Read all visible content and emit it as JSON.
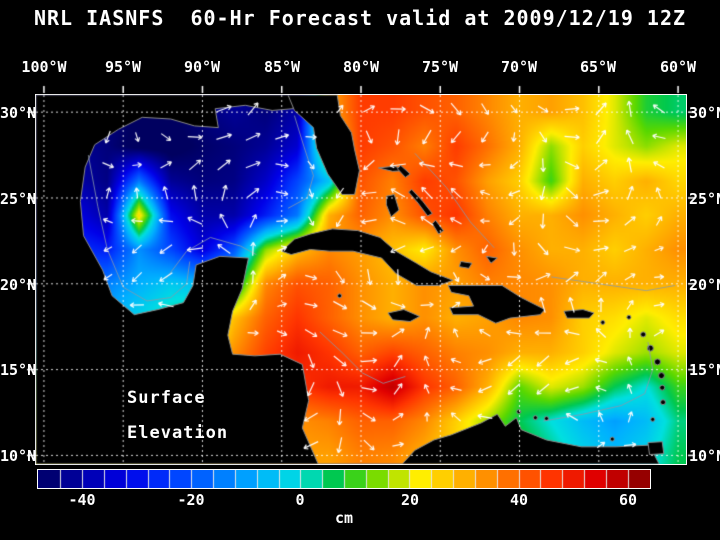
{
  "chart_data": {
    "type": "heatmap",
    "title": "NRL IASNFS  60-Hr Forecast valid at 2009/12/19 12Z",
    "annotation": {
      "line1": "Surface",
      "line2": "Elevation"
    },
    "x_axis": {
      "ticks": [
        "100°W",
        "95°W",
        "90°W",
        "85°W",
        "80°W",
        "75°W",
        "70°W",
        "65°W",
        "60°W"
      ],
      "lon_values": [
        -100,
        -95,
        -90,
        -85,
        -80,
        -75,
        -70,
        -65,
        -60
      ]
    },
    "y_axis": {
      "ticks": [
        "30°N",
        "25°N",
        "20°N",
        "15°N",
        "10°N"
      ],
      "lat_values": [
        30,
        25,
        20,
        15,
        10
      ]
    },
    "colorbar": {
      "units": "cm",
      "ticks": [
        -40,
        -20,
        0,
        20,
        40,
        60
      ],
      "range": [
        -48,
        64
      ],
      "segment_step": 4,
      "stops": [
        [
          -48,
          "#000060"
        ],
        [
          -40,
          "#0000a8"
        ],
        [
          -32,
          "#0000e8"
        ],
        [
          -24,
          "#0038ff"
        ],
        [
          -16,
          "#0070ff"
        ],
        [
          -8,
          "#00b0ff"
        ],
        [
          0,
          "#00e0e0"
        ],
        [
          6,
          "#00c850"
        ],
        [
          12,
          "#58d800"
        ],
        [
          18,
          "#c0e400"
        ],
        [
          22,
          "#ffee00"
        ],
        [
          30,
          "#ffb000"
        ],
        [
          38,
          "#ff7000"
        ],
        [
          46,
          "#ff3400"
        ],
        [
          54,
          "#e00000"
        ],
        [
          60,
          "#b00000"
        ],
        [
          64,
          "#7c0000"
        ]
      ]
    },
    "grid": {
      "lon_start": -100,
      "lon_step": 2,
      "lat_start": 30,
      "lat_step": -2,
      "units": "cm",
      "values": [
        [
          -45,
          -45,
          -45,
          -48,
          -48,
          -45,
          -42,
          -45,
          -40,
          30,
          45,
          45,
          42,
          40,
          35,
          30,
          32,
          28,
          20,
          8,
          5
        ],
        [
          -40,
          -42,
          -45,
          -50,
          -50,
          -47,
          -45,
          -42,
          -35,
          20,
          45,
          42,
          36,
          45,
          38,
          30,
          15,
          26,
          20,
          15,
          20
        ],
        [
          -38,
          -40,
          -44,
          -15,
          -42,
          -45,
          -44,
          -36,
          -22,
          -5,
          42,
          36,
          45,
          42,
          32,
          26,
          10,
          30,
          26,
          30,
          25
        ],
        [
          -30,
          -32,
          -40,
          25,
          -30,
          -40,
          -40,
          -28,
          -15,
          30,
          40,
          34,
          42,
          46,
          36,
          30,
          30,
          34,
          30,
          26,
          30
        ],
        [
          -25,
          -25,
          -28,
          -12,
          -22,
          -34,
          -20,
          15,
          28,
          35,
          32,
          28,
          22,
          34,
          40,
          34,
          30,
          30,
          26,
          30,
          34
        ],
        [
          -20,
          -18,
          -14,
          -8,
          -4,
          -6,
          0,
          35,
          42,
          40,
          34,
          30,
          34,
          32,
          36,
          35,
          34,
          30,
          30,
          30,
          30
        ],
        [
          -10,
          -8,
          -8,
          -2,
          4,
          8,
          28,
          40,
          46,
          40,
          34,
          30,
          34,
          30,
          32,
          35,
          34,
          26,
          24,
          20,
          24
        ],
        [
          0,
          0,
          2,
          6,
          10,
          20,
          34,
          44,
          50,
          46,
          40,
          44,
          40,
          36,
          34,
          30,
          30,
          26,
          20,
          16,
          20
        ],
        [
          10,
          10,
          10,
          14,
          20,
          26,
          32,
          40,
          46,
          50,
          50,
          58,
          46,
          40,
          30,
          12,
          20,
          16,
          6,
          0,
          10
        ],
        [
          15,
          15,
          15,
          18,
          22,
          26,
          30,
          32,
          34,
          36,
          40,
          40,
          35,
          26,
          16,
          6,
          0,
          -6,
          -10,
          -6,
          4
        ],
        [
          20,
          20,
          20,
          20,
          22,
          26,
          28,
          30,
          32,
          32,
          36,
          35,
          30,
          24,
          18,
          10,
          4,
          -2,
          -6,
          -2,
          6
        ]
      ]
    },
    "styles": {
      "vector_color": "#ffffff",
      "grid_line_color": "#ffffff",
      "land_color": "#000000",
      "coast_color": "#8a8a8a",
      "contour_color": "#8899aa",
      "background": "#000000",
      "text_color": "#ffffff"
    }
  },
  "map": {
    "lon_range": [
      -100.5,
      -59.5
    ],
    "lat_range": [
      9.5,
      31
    ],
    "land": [
      [
        [
          -84,
          31
        ],
        [
          -84.3,
          30.2
        ],
        [
          -85.6,
          30.1
        ],
        [
          -87.3,
          30.4
        ],
        [
          -89.2,
          30.2
        ],
        [
          -89,
          29.1
        ],
        [
          -90.5,
          29.2
        ],
        [
          -92,
          29.6
        ],
        [
          -93.8,
          29.7
        ],
        [
          -95.3,
          29
        ],
        [
          -96.8,
          28.1
        ],
        [
          -97.4,
          26.8
        ],
        [
          -97.7,
          24.8
        ],
        [
          -97.5,
          22.8
        ],
        [
          -96.3,
          20.8
        ],
        [
          -95.7,
          19.3
        ],
        [
          -94.3,
          18.2
        ],
        [
          -92.8,
          18.5
        ],
        [
          -91.2,
          18.9
        ],
        [
          -90.6,
          19.9
        ],
        [
          -90.4,
          21.1
        ],
        [
          -88.9,
          21.6
        ],
        [
          -87.1,
          21.5
        ],
        [
          -87.5,
          19.7
        ],
        [
          -88.1,
          18.4
        ],
        [
          -88.4,
          17
        ],
        [
          -88.1,
          15.9
        ],
        [
          -86.7,
          15.8
        ],
        [
          -85.1,
          15.9
        ],
        [
          -83.7,
          15.3
        ],
        [
          -83.3,
          13.2
        ],
        [
          -83.7,
          11.6
        ],
        [
          -82.7,
          9.5
        ],
        [
          -77.4,
          9.5
        ],
        [
          -76.6,
          10.3
        ],
        [
          -75.4,
          10.9
        ],
        [
          -74.3,
          11.2
        ],
        [
          -72.4,
          11.9
        ],
        [
          -71.4,
          12.4
        ],
        [
          -70.9,
          11.7
        ],
        [
          -70.2,
          12.2
        ],
        [
          -69.9,
          11.5
        ],
        [
          -68.3,
          10.9
        ],
        [
          -66.1,
          10.5
        ],
        [
          -63.9,
          10.5
        ],
        [
          -61.8,
          10.6
        ],
        [
          -61.2,
          9.5
        ],
        [
          -100.5,
          9.5
        ],
        [
          -100.5,
          31
        ]
      ],
      [
        [
          -84.6,
          31
        ],
        [
          -84.2,
          30.1
        ],
        [
          -83,
          29.1
        ],
        [
          -82.8,
          27.9
        ],
        [
          -82.1,
          26.4
        ],
        [
          -81.2,
          25.2
        ],
        [
          -80.4,
          25.2
        ],
        [
          -80.1,
          26.6
        ],
        [
          -80.4,
          27.8
        ],
        [
          -80.6,
          28.8
        ],
        [
          -81.3,
          29.8
        ],
        [
          -81.5,
          31
        ]
      ],
      [
        [
          -85,
          21.9
        ],
        [
          -84.2,
          22.6
        ],
        [
          -83.2,
          22.9
        ],
        [
          -81.8,
          23.2
        ],
        [
          -80.2,
          23.1
        ],
        [
          -78.8,
          22.7
        ],
        [
          -77.8,
          21.9
        ],
        [
          -76.5,
          21.2
        ],
        [
          -75.6,
          20.7
        ],
        [
          -74.2,
          20.2
        ],
        [
          -75.1,
          19.9
        ],
        [
          -76.5,
          19.9
        ],
        [
          -77.8,
          20.6
        ],
        [
          -78.7,
          21.5
        ],
        [
          -80.5,
          21.9
        ],
        [
          -82,
          21.9
        ],
        [
          -83.2,
          22
        ],
        [
          -84.4,
          21.7
        ]
      ],
      [
        [
          -74.5,
          19.9
        ],
        [
          -72.8,
          19.9
        ],
        [
          -71.1,
          19.9
        ],
        [
          -69.9,
          19.2
        ],
        [
          -68.4,
          18.5
        ],
        [
          -68.7,
          18.2
        ],
        [
          -70.6,
          18
        ],
        [
          -71.5,
          17.7
        ],
        [
          -72.6,
          18.2
        ],
        [
          -74.2,
          18.2
        ],
        [
          -74.4,
          18.6
        ],
        [
          -72.9,
          18.7
        ],
        [
          -73.2,
          19.3
        ],
        [
          -74.3,
          19.5
        ]
      ],
      [
        [
          -78.3,
          18.3
        ],
        [
          -77.3,
          18.5
        ],
        [
          -76.3,
          18.1
        ],
        [
          -76.9,
          17.8
        ],
        [
          -78,
          17.9
        ]
      ],
      [
        [
          -67.2,
          18.4
        ],
        [
          -66,
          18.5
        ],
        [
          -65.3,
          18.3
        ],
        [
          -65.6,
          18
        ],
        [
          -67,
          18
        ]
      ],
      [
        [
          -78.4,
          25.1
        ],
        [
          -77.9,
          25.2
        ],
        [
          -77.6,
          24.3
        ],
        [
          -78.1,
          23.9
        ],
        [
          -78.4,
          24.6
        ]
      ],
      [
        [
          -78.9,
          26.75
        ],
        [
          -77.9,
          26.85
        ],
        [
          -77.1,
          26.6
        ],
        [
          -78,
          26.55
        ]
      ],
      [
        [
          -77.5,
          26.9
        ],
        [
          -76.9,
          26.4
        ],
        [
          -77.2,
          26.2
        ],
        [
          -77.7,
          26.7
        ]
      ],
      [
        [
          -76.8,
          25.5
        ],
        [
          -76.1,
          24.8
        ],
        [
          -75.5,
          24.1
        ],
        [
          -75.8,
          23.95
        ],
        [
          -76.4,
          24.7
        ],
        [
          -77,
          25.35
        ]
      ],
      [
        [
          -75.3,
          23.7
        ],
        [
          -74.8,
          23.1
        ],
        [
          -75.1,
          22.9
        ],
        [
          -75.5,
          23.5
        ]
      ],
      [
        [
          -73.7,
          21.3
        ],
        [
          -73,
          21.2
        ],
        [
          -73.2,
          20.9
        ],
        [
          -73.8,
          21
        ]
      ],
      [
        [
          -72.1,
          21.6
        ],
        [
          -71.4,
          21.5
        ],
        [
          -71.8,
          21.2
        ]
      ],
      [
        [
          -61.9,
          10.75
        ],
        [
          -61,
          10.8
        ],
        [
          -60.9,
          10.1
        ],
        [
          -61.8,
          10.05
        ]
      ]
    ],
    "island_dots": [
      [
        -81.35,
        19.3,
        2
      ],
      [
        -70.05,
        12.55,
        2
      ],
      [
        -69,
        12.2,
        2
      ],
      [
        -68.3,
        12.15,
        2
      ],
      [
        -64.75,
        17.75,
        2
      ],
      [
        -63.1,
        18.05,
        2
      ],
      [
        -62.2,
        17.05,
        2.5
      ],
      [
        -61.75,
        16.25,
        3
      ],
      [
        -61.3,
        15.45,
        3
      ],
      [
        -61.05,
        14.65,
        3
      ],
      [
        -61,
        13.95,
        2.5
      ],
      [
        -60.95,
        13.1,
        2.5
      ],
      [
        -61.6,
        12.1,
        2
      ],
      [
        -64.15,
        10.95,
        2
      ]
    ],
    "contours": [
      [
        [
          -97.2,
          27.5
        ],
        [
          -96.6,
          24.5
        ],
        [
          -96,
          22
        ],
        [
          -95,
          19.8
        ],
        [
          -93.5,
          19
        ],
        [
          -92,
          19.2
        ],
        [
          -91,
          20
        ],
        [
          -90.8,
          21.3
        ]
      ],
      [
        [
          -92.3,
          20.3
        ],
        [
          -91,
          21.9
        ],
        [
          -89.5,
          22.7
        ],
        [
          -87.6,
          22.2
        ],
        [
          -86.6,
          21.7
        ]
      ],
      [
        [
          -84.2,
          29.8
        ],
        [
          -83.6,
          28
        ],
        [
          -83,
          26.3
        ],
        [
          -83.4,
          25
        ],
        [
          -84.6,
          24.4
        ]
      ],
      [
        [
          -82.6,
          17.2
        ],
        [
          -81.2,
          16
        ],
        [
          -79.9,
          14.8
        ],
        [
          -78.6,
          14.2
        ],
        [
          -77.2,
          14.6
        ]
      ],
      [
        [
          -68.5,
          12
        ],
        [
          -66,
          12.4
        ],
        [
          -63.6,
          12.9
        ],
        [
          -62.1,
          13.6
        ],
        [
          -61.6,
          15
        ],
        [
          -61.9,
          16.6
        ]
      ],
      [
        [
          -68,
          20.4
        ],
        [
          -65,
          20
        ],
        [
          -62,
          19.6
        ],
        [
          -60.2,
          19.9
        ]
      ],
      [
        [
          -76.6,
          27.6
        ],
        [
          -74.6,
          25.6
        ],
        [
          -73.1,
          23.6
        ],
        [
          -71.6,
          22.1
        ]
      ]
    ]
  }
}
